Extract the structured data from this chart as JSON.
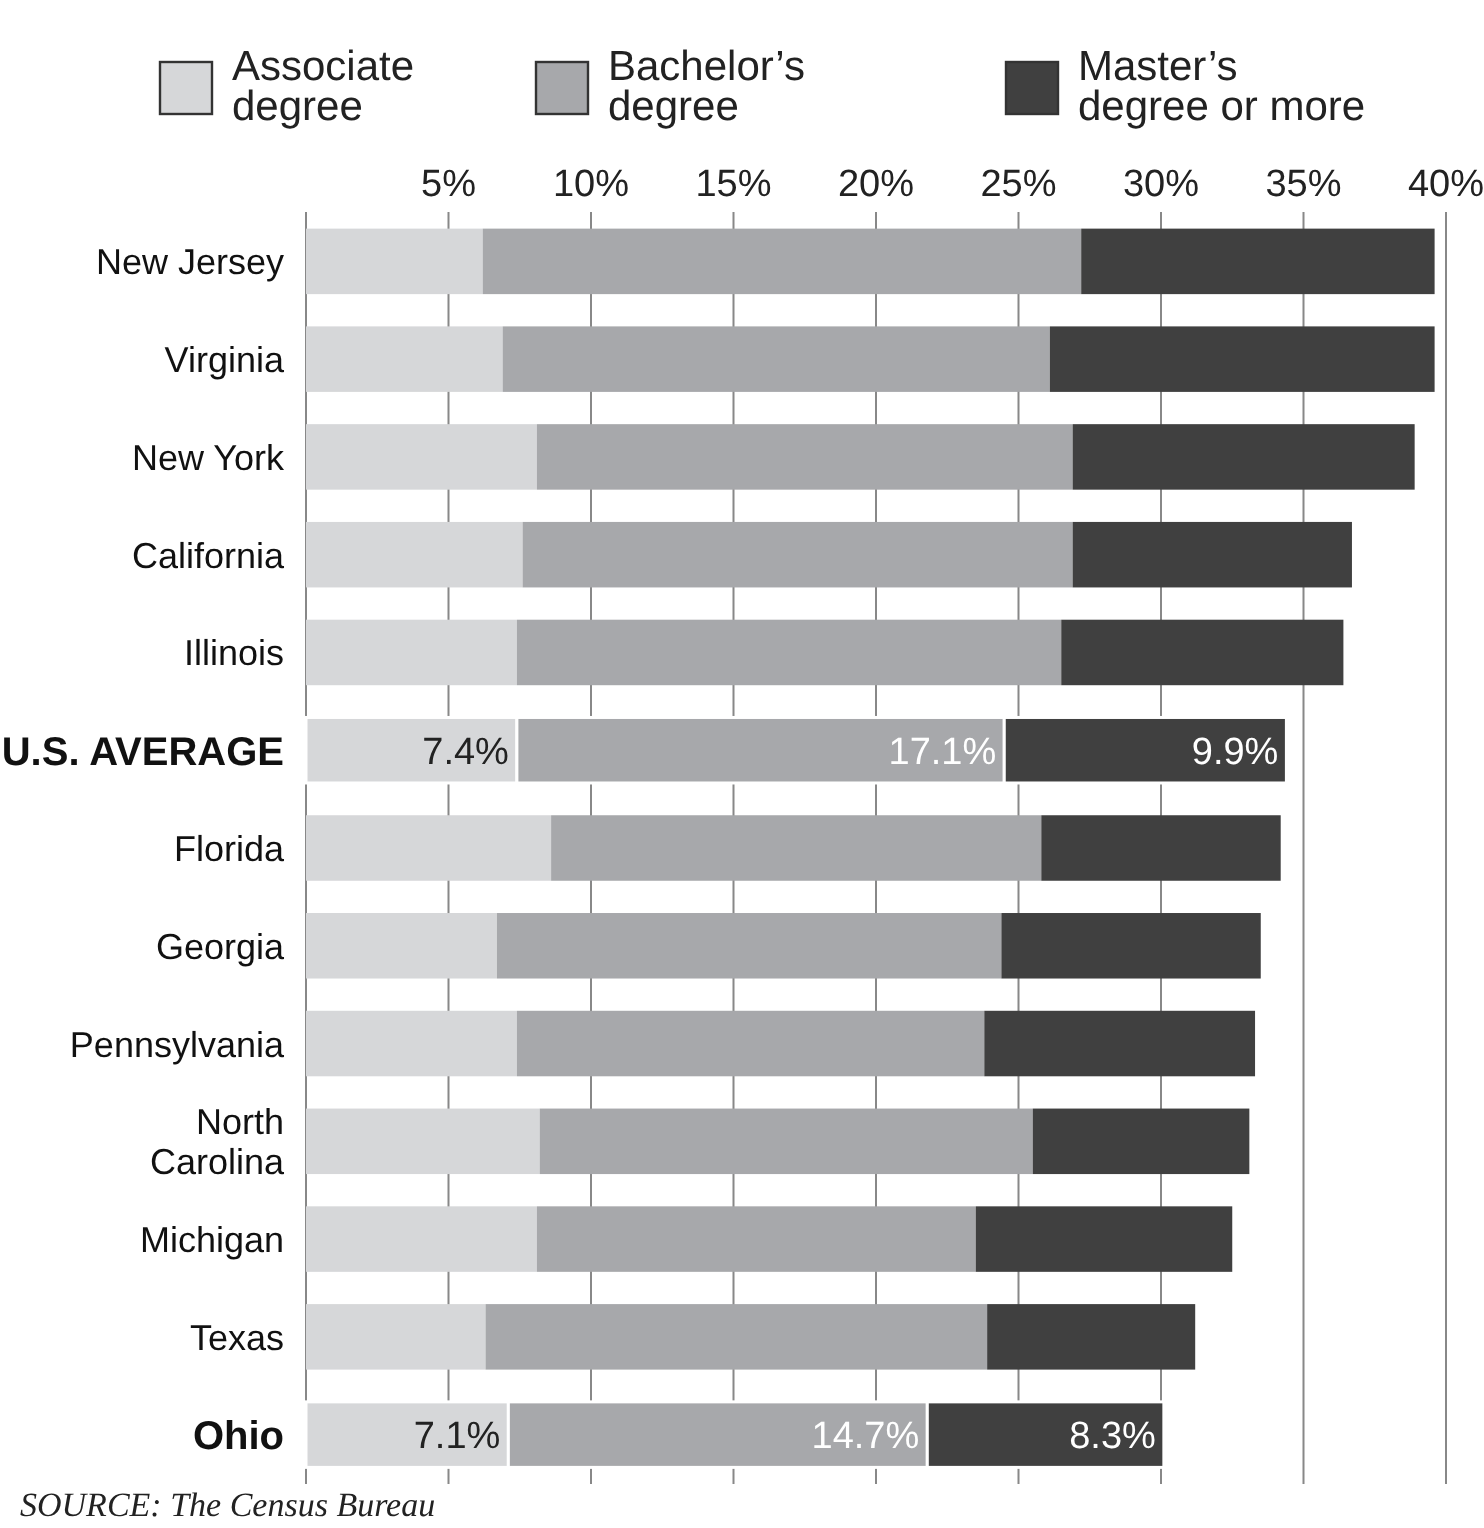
{
  "chart_data": {
    "type": "bar",
    "orientation": "horizontal",
    "stacked": true,
    "categories": [
      "New Jersey",
      "Virginia",
      "New York",
      "California",
      "Illinois",
      "U.S. AVERAGE",
      "Florida",
      "Georgia",
      "Pennsylvania",
      "North Carolina",
      "Michigan",
      "Texas",
      "Ohio"
    ],
    "series": [
      {
        "name": "Associate degree",
        "color": "#d6d7d9",
        "values": [
          6.2,
          6.9,
          8.1,
          7.6,
          7.4,
          7.4,
          8.6,
          6.7,
          7.4,
          8.2,
          8.1,
          6.3,
          7.1
        ],
        "value_labels": [
          null,
          null,
          null,
          null,
          null,
          "7.4%",
          null,
          null,
          null,
          null,
          null,
          null,
          "7.1%"
        ]
      },
      {
        "name": "Bachelor’s degree",
        "color": "#a7a8ab",
        "values": [
          21.0,
          19.2,
          18.8,
          19.3,
          19.1,
          17.1,
          17.2,
          17.7,
          16.4,
          17.3,
          15.4,
          17.6,
          14.7
        ],
        "value_labels": [
          null,
          null,
          null,
          null,
          null,
          "17.1%",
          null,
          null,
          null,
          null,
          null,
          null,
          "14.7%"
        ]
      },
      {
        "name": "Master’s degree or more",
        "color": "#404040",
        "values": [
          12.4,
          13.5,
          12.0,
          9.8,
          9.9,
          9.9,
          8.4,
          9.1,
          9.5,
          7.6,
          9.0,
          7.3,
          8.3
        ],
        "value_labels": [
          null,
          null,
          null,
          null,
          null,
          "9.9%",
          null,
          null,
          null,
          null,
          null,
          null,
          "8.3%"
        ]
      }
    ],
    "xlim": [
      0,
      40
    ],
    "xticks": [
      {
        "value": 5,
        "label": "5%"
      },
      {
        "value": 10,
        "label": "10%"
      },
      {
        "value": 15,
        "label": "15%"
      },
      {
        "value": 20,
        "label": "20%"
      },
      {
        "value": 25,
        "label": "25%"
      },
      {
        "value": 30,
        "label": "30%"
      },
      {
        "value": 35,
        "label": "35%"
      },
      {
        "value": 40,
        "label": "40%"
      }
    ],
    "grid": "x",
    "legend": "top",
    "annotations": [
      "SOURCE: The Census Bureau"
    ]
  }
}
